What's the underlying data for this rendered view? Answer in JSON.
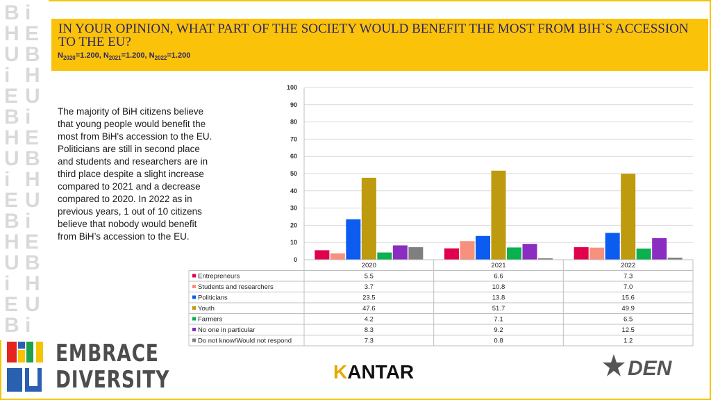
{
  "header": {
    "title": "IN YOUR OPINION, WHAT PART OF THE SOCIETY WOULD BENEFIT THE MOST FROM BiH`S ACCESSION TO THE EU?",
    "sample_parts": [
      "N",
      "2020",
      "=1.200, N",
      "2021",
      "=1.200, N",
      "2022",
      "=1.200"
    ]
  },
  "description": "The majority of BiH citizens believe that young people would benefit the most from BiH's accession to the EU. Politicians are still in second place and students and researchers are in third place despite a slight increase compared to 2021 and a decrease compared to 2020. In 2022 as in previous years, 1 out of 10 citizens believe that nobody would benefit from BiH’s accession to the EU.",
  "logos": {
    "left_brand": "EMBRACE DIVERSITY",
    "embrace_line1": "EMBRACE",
    "embrace_line2": "DIVERSITY",
    "biH_letters": [
      "B",
      "i",
      "H",
      "E",
      "U"
    ],
    "kantar": "KANTAR",
    "kantar_k": "K",
    "kantar_rest": "ANTAR",
    "den": "DEN"
  },
  "colors": {
    "header_bg": "#fbc20a",
    "title_text": "#2a2466"
  },
  "chart_data": {
    "type": "bar",
    "categories": [
      "2020",
      "2021",
      "2022"
    ],
    "ylim": [
      0,
      100
    ],
    "yticks": [
      0,
      10,
      20,
      30,
      40,
      50,
      60,
      70,
      80,
      90,
      100
    ],
    "grid": true,
    "legend": "table-below",
    "series": [
      {
        "name": "Entrepreneurs",
        "color": "#e0004d",
        "values": [
          5.5,
          6.6,
          7.3
        ],
        "labels": [
          "5.5",
          "6.6",
          "7.3"
        ]
      },
      {
        "name": "Students and researchers",
        "color": "#f7917d",
        "values": [
          3.7,
          10.8,
          7.0
        ],
        "labels": [
          "3.7",
          "10.8",
          "7.0"
        ]
      },
      {
        "name": "Politicians",
        "color": "#0d5cf2",
        "values": [
          23.5,
          13.8,
          15.6
        ],
        "labels": [
          "23.5",
          "13.8",
          "15.6"
        ]
      },
      {
        "name": "Youth",
        "color": "#bd9a0e",
        "values": [
          47.6,
          51.7,
          49.9
        ],
        "labels": [
          "47.6",
          "51.7",
          "49.9"
        ]
      },
      {
        "name": "Farmers",
        "color": "#0bb04f",
        "values": [
          4.2,
          7.1,
          6.5
        ],
        "labels": [
          "4.2",
          "7.1",
          "6.5"
        ]
      },
      {
        "name": "No one in particular",
        "color": "#8b2dc0",
        "values": [
          8.3,
          9.2,
          12.5
        ],
        "labels": [
          "8.3",
          "9.2",
          "12.5"
        ]
      },
      {
        "name": "Do not know/Would not respond",
        "color": "#7f7f7f",
        "values": [
          7.3,
          0.8,
          1.2
        ],
        "labels": [
          "7.3",
          "0.8",
          "1.2"
        ]
      }
    ]
  }
}
